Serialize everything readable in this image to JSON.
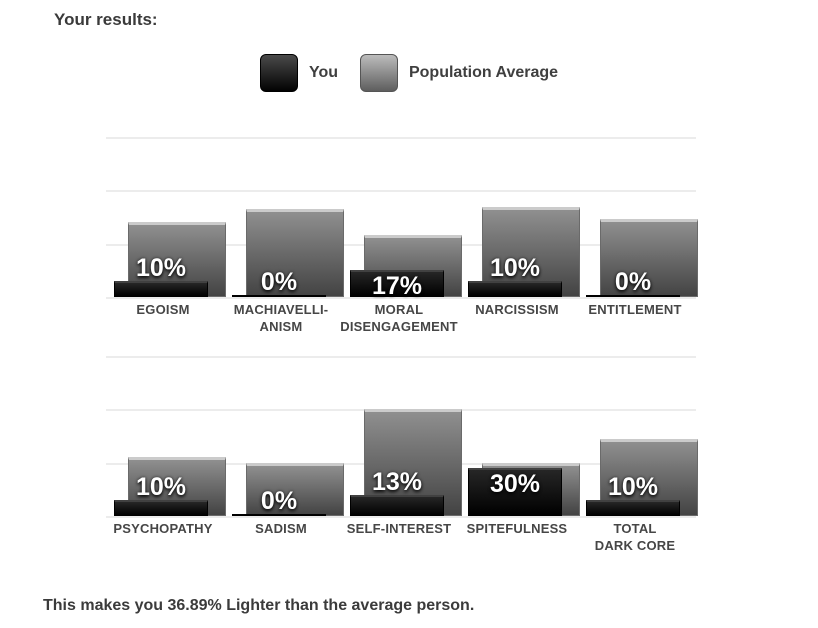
{
  "page": {
    "title": "Your results:",
    "footer": "This makes you 36.89% Lighter than the average person."
  },
  "legend": {
    "you_label": "You",
    "population_label": "Population Average"
  },
  "colors": {
    "you_bar_top": "#262626",
    "you_bar_bottom": "#000000",
    "population_bar_top": "#8f8f8f",
    "population_bar_bottom": "#434343",
    "gridline": "#ececec",
    "heading_text": "#3a3a3a",
    "category_text": "#464646",
    "value_label_text": "#ffffff"
  },
  "chart_data": {
    "type": "bar",
    "title": "Your results:",
    "legend": [
      "You",
      "Population Average"
    ],
    "legend_position": "top",
    "grid": true,
    "gridline_percents": [
      0,
      33.3,
      66.7,
      100
    ],
    "ylim": [
      0,
      100
    ],
    "value_suffix": "%",
    "note": "Population Average values estimated from bar heights against gridlines",
    "rows": [
      {
        "categories": [
          "EGOISM",
          "MACHIAVELLIANISM",
          "MORAL DISENGAGEMENT",
          "NARCISSISM",
          "ENTITLEMENT"
        ],
        "category_label_lines": [
          [
            "EGOISM"
          ],
          [
            "MACHIAVELLI-",
            "ANISM"
          ],
          [
            "MORAL",
            "DISENGAGEMENT"
          ],
          [
            "NARCISSISM"
          ],
          [
            "ENTITLEMENT"
          ]
        ],
        "series": [
          {
            "name": "You",
            "values": [
              10,
              0,
              17,
              10,
              0
            ],
            "labels": [
              "10%",
              "0%",
              "17%",
              "10%",
              "0%"
            ]
          },
          {
            "name": "Population Average",
            "values": [
              47,
              55,
              39,
              56,
              49
            ],
            "labels": []
          }
        ]
      },
      {
        "categories": [
          "PSYCHOPATHY",
          "SADISM",
          "SELF-INTEREST",
          "SPITEFULNESS",
          "TOTAL DARK CORE"
        ],
        "category_label_lines": [
          [
            "PSYCHOPATHY"
          ],
          [
            "SADISM"
          ],
          [
            "SELF-INTEREST"
          ],
          [
            "SPITEFULNESS"
          ],
          [
            "TOTAL",
            "DARK CORE"
          ]
        ],
        "series": [
          {
            "name": "You",
            "values": [
              10,
              0,
              13,
              30,
              10
            ],
            "labels": [
              "10%",
              "0%",
              "13%",
              "30%",
              "10%"
            ]
          },
          {
            "name": "Population Average",
            "values": [
              37,
              33,
              67,
              33,
              48
            ],
            "labels": []
          }
        ]
      }
    ]
  }
}
